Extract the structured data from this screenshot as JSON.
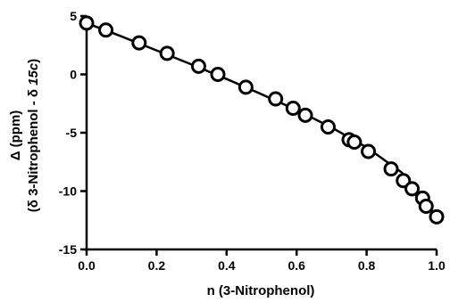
{
  "chart_data": {
    "type": "scatter",
    "title": "",
    "xlabel": "n (3-Nitrophenol)",
    "ylabel_line1": "Δ (ppm)",
    "ylabel_line2_prefix": "(δ 3-Nitrophenol - δ ",
    "ylabel_line2_italic": "15c",
    "ylabel_line2_suffix": ")",
    "xlim": [
      0.0,
      1.0
    ],
    "ylim": [
      -15,
      5
    ],
    "x_ticks": [
      0.0,
      0.2,
      0.4,
      0.6,
      0.8,
      1.0
    ],
    "x_tick_labels": [
      "0.0",
      "0.2",
      "0.4",
      "0.6",
      "0.8",
      "1.0"
    ],
    "y_ticks": [
      5,
      0,
      -5,
      -10,
      -15
    ],
    "y_tick_labels": [
      "5",
      "0",
      "-5",
      "-10",
      "-15"
    ],
    "grid": false,
    "legend": "none",
    "series": [
      {
        "marker": "open-circle",
        "x": [
          0.0,
          0.055,
          0.15,
          0.23,
          0.32,
          0.375,
          0.455,
          0.54,
          0.59,
          0.625,
          0.69,
          0.75,
          0.765,
          0.805,
          0.87,
          0.905,
          0.93,
          0.96,
          0.97,
          1.0
        ],
        "y": [
          4.4,
          3.8,
          2.7,
          1.8,
          0.7,
          0.0,
          -1.1,
          -2.1,
          -2.9,
          -3.5,
          -4.5,
          -5.6,
          -5.8,
          -6.6,
          -8.1,
          -9.1,
          -9.8,
          -10.6,
          -11.3,
          -12.2
        ]
      }
    ],
    "fit_line": {
      "x": [
        0.0,
        0.1,
        0.2,
        0.3,
        0.4,
        0.5,
        0.6,
        0.7,
        0.8,
        0.9,
        1.0
      ],
      "y": [
        4.4,
        3.25,
        2.05,
        0.85,
        -0.4,
        -1.7,
        -3.05,
        -4.55,
        -6.25,
        -8.4,
        -12.2
      ]
    }
  }
}
